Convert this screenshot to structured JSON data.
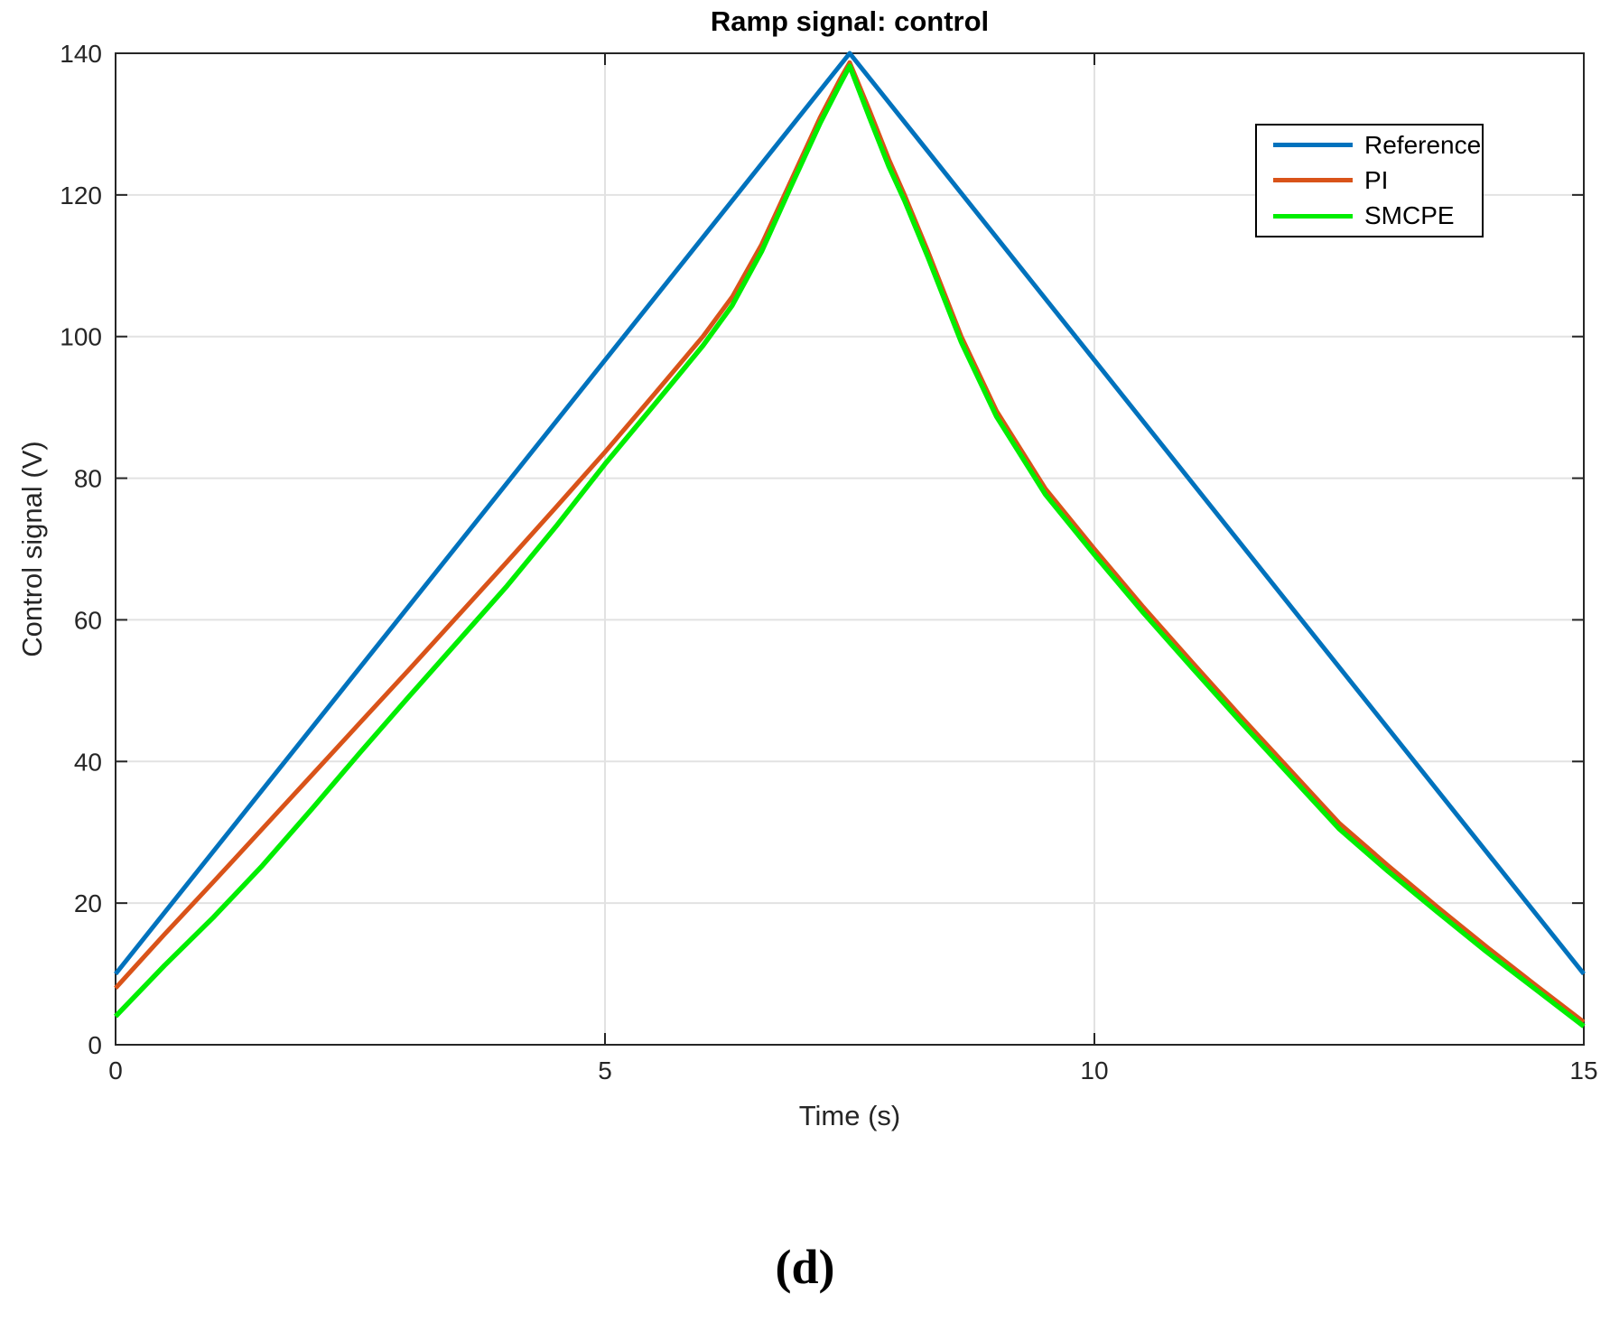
{
  "title": "Ramp signal: control",
  "caption": "(d)",
  "axis_color": "#262626",
  "grid_color": "#e2e2e2",
  "chart_data": {
    "type": "line",
    "title": "Ramp signal: control",
    "xlabel": "Time (s)",
    "ylabel": "Control signal (V)",
    "xlim": [
      0,
      15
    ],
    "ylim": [
      0,
      140
    ],
    "xticks": [
      0,
      5,
      10,
      15
    ],
    "yticks": [
      0,
      20,
      40,
      60,
      80,
      100,
      120,
      140
    ],
    "grid": true,
    "legend_position": "top-right",
    "series": [
      {
        "name": "Reference",
        "color": "#0072BD",
        "width": 5,
        "points": [
          [
            0,
            10
          ],
          [
            7.5,
            140
          ],
          [
            15,
            10
          ]
        ]
      },
      {
        "name": "PI",
        "color": "#D95319",
        "width": 5,
        "points": [
          [
            0,
            8
          ],
          [
            0.5,
            15.6
          ],
          [
            1,
            23
          ],
          [
            1.5,
            30.5
          ],
          [
            2,
            38
          ],
          [
            2.5,
            45.5
          ],
          [
            3,
            53
          ],
          [
            3.5,
            60.6
          ],
          [
            4,
            68.2
          ],
          [
            4.5,
            75.9
          ],
          [
            5,
            83.7
          ],
          [
            5.5,
            91.8
          ],
          [
            6,
            100
          ],
          [
            6.3,
            105.6
          ],
          [
            6.6,
            113
          ],
          [
            6.9,
            122
          ],
          [
            7.2,
            131
          ],
          [
            7.4,
            136.3
          ],
          [
            7.5,
            138.7
          ],
          [
            7.7,
            132
          ],
          [
            7.9,
            125
          ],
          [
            8.06,
            120
          ],
          [
            8.3,
            112
          ],
          [
            8.64,
            100
          ],
          [
            9,
            89.5
          ],
          [
            9.5,
            78.5
          ],
          [
            10,
            70
          ],
          [
            10.5,
            61.8
          ],
          [
            11,
            54
          ],
          [
            11.5,
            46.3
          ],
          [
            12,
            38.8
          ],
          [
            12.5,
            31.3
          ],
          [
            13,
            25.3
          ],
          [
            13.5,
            19.5
          ],
          [
            14,
            13.9
          ],
          [
            14.5,
            8.5
          ],
          [
            15,
            3.2
          ]
        ]
      },
      {
        "name": "SMCPE",
        "color": "#00EE00",
        "width": 5.5,
        "points": [
          [
            0,
            4
          ],
          [
            0.5,
            11.2
          ],
          [
            1,
            18
          ],
          [
            1.5,
            25.3
          ],
          [
            2,
            33.2
          ],
          [
            2.5,
            41.3
          ],
          [
            3,
            49.2
          ],
          [
            3.5,
            57
          ],
          [
            4,
            64.8
          ],
          [
            4.5,
            73.2
          ],
          [
            5,
            82
          ],
          [
            5.5,
            90.3
          ],
          [
            6,
            98.7
          ],
          [
            6.3,
            104.4
          ],
          [
            6.6,
            112
          ],
          [
            6.9,
            121.2
          ],
          [
            7.2,
            130.2
          ],
          [
            7.4,
            135.6
          ],
          [
            7.5,
            138.2
          ],
          [
            7.7,
            131
          ],
          [
            7.9,
            124
          ],
          [
            8.06,
            119.2
          ],
          [
            8.3,
            111.2
          ],
          [
            8.64,
            99.2
          ],
          [
            9,
            88.7
          ],
          [
            9.5,
            77.7
          ],
          [
            10,
            69.2
          ],
          [
            10.5,
            61
          ],
          [
            11,
            53.2
          ],
          [
            11.5,
            45.5
          ],
          [
            12,
            38
          ],
          [
            12.5,
            30.5
          ],
          [
            13,
            24.5
          ],
          [
            13.5,
            18.8
          ],
          [
            14,
            13.2
          ],
          [
            14.5,
            7.9
          ],
          [
            15,
            2.6
          ]
        ]
      }
    ]
  }
}
